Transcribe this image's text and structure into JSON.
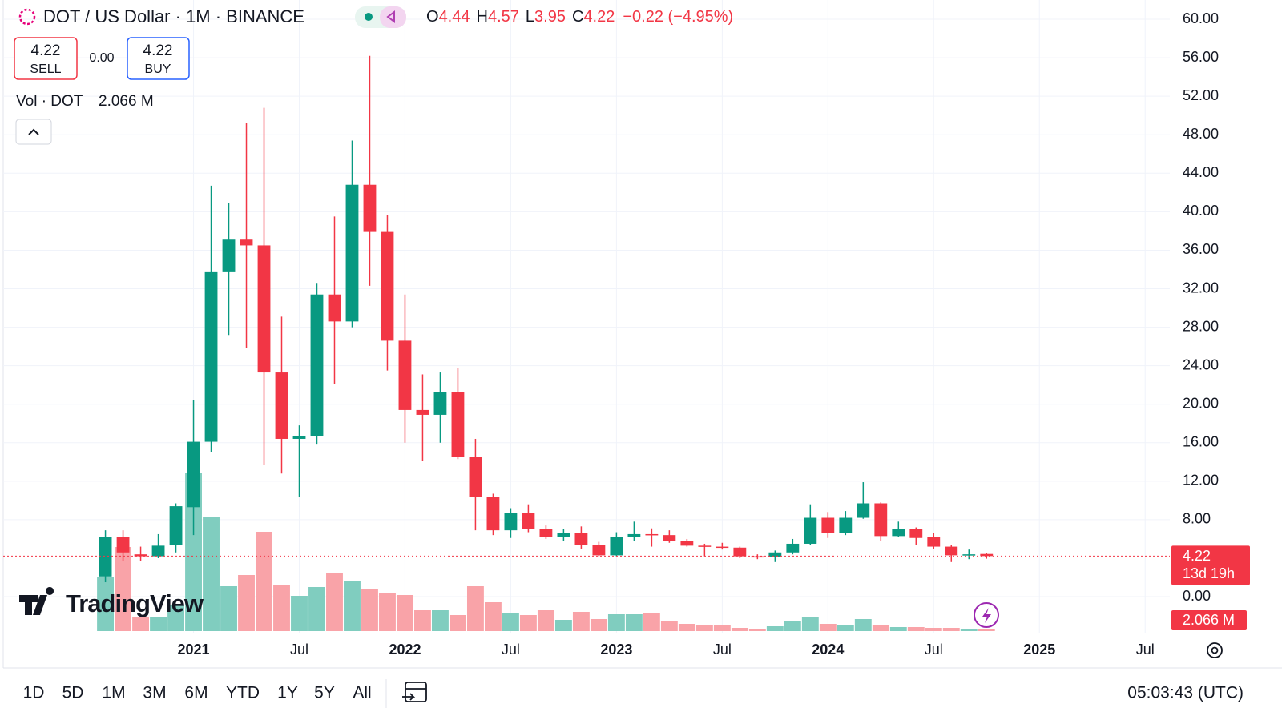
{
  "chart_data": {
    "type": "candlestick",
    "title": "DOT / US Dollar · 1M · BINANCE",
    "categories": [
      null,
      null,
      null,
      null,
      null,
      null,
      null,
      null,
      null,
      null,
      null,
      null,
      null,
      null,
      null,
      null,
      null,
      null,
      null,
      null,
      null,
      null,
      null,
      null,
      null,
      null,
      null,
      null,
      null,
      null,
      null,
      null,
      null,
      null,
      null,
      null,
      null,
      null,
      null,
      null,
      null,
      null,
      null,
      null,
      null,
      null,
      null,
      null,
      null,
      null,
      null
    ],
    "open": [
      2.1,
      6.2,
      4.4,
      4.2,
      5.4,
      9.3,
      16.1,
      33.8,
      37.1,
      36.5,
      23.3,
      16.4,
      16.7,
      31.4,
      28.6,
      42.8,
      37.9,
      26.6,
      19.4,
      18.9,
      21.3,
      14.5,
      10.4,
      6.9,
      8.7,
      7.0,
      6.2,
      6.6,
      5.4,
      4.3,
      6.2,
      6.5,
      6.4,
      5.8,
      5.3,
      5.2,
      5.1,
      4.2,
      4.1,
      4.6,
      5.5,
      8.2,
      6.6,
      8.2,
      9.7,
      6.3,
      7.0,
      6.2,
      5.2,
      4.3,
      4.44
    ],
    "high": [
      6.9,
      6.9,
      5.2,
      6.5,
      9.7,
      20.4,
      42.7,
      40.9,
      49.2,
      50.8,
      29.1,
      17.8,
      32.6,
      39.5,
      47.4,
      56.2,
      39.7,
      31.4,
      23.1,
      23.3,
      23.8,
      16.4,
      10.7,
      9.2,
      9.6,
      7.4,
      7.0,
      7.3,
      5.7,
      6.7,
      7.8,
      7.1,
      6.9,
      6.0,
      5.5,
      5.6,
      5.2,
      4.4,
      4.8,
      6.0,
      9.6,
      8.8,
      8.9,
      11.9,
      9.8,
      7.8,
      7.2,
      6.6,
      5.4,
      4.9,
      4.57
    ],
    "low": [
      1.5,
      3.7,
      3.7,
      4.0,
      4.6,
      6.4,
      15.0,
      27.2,
      25.8,
      13.7,
      12.8,
      10.4,
      15.8,
      22.1,
      28.0,
      32.3,
      23.5,
      16.0,
      14.1,
      16.0,
      14.3,
      6.9,
      6.4,
      6.1,
      6.7,
      6.0,
      5.8,
      5.0,
      4.2,
      4.2,
      5.8,
      5.2,
      5.6,
      5.2,
      4.2,
      4.9,
      4.0,
      3.9,
      3.6,
      4.4,
      5.4,
      6.1,
      6.4,
      8.1,
      5.8,
      6.2,
      5.4,
      5.0,
      3.6,
      3.9,
      3.95
    ],
    "close": [
      6.2,
      4.6,
      4.2,
      5.3,
      9.4,
      16.1,
      33.8,
      37.1,
      36.5,
      23.3,
      16.4,
      16.7,
      31.4,
      28.6,
      42.8,
      37.9,
      26.6,
      19.4,
      18.9,
      21.3,
      14.5,
      10.4,
      6.9,
      8.7,
      7.0,
      6.2,
      6.6,
      5.4,
      4.3,
      6.2,
      6.5,
      6.4,
      5.8,
      5.3,
      5.2,
      5.1,
      4.2,
      4.1,
      4.6,
      5.5,
      8.2,
      6.6,
      8.2,
      9.7,
      6.3,
      7.0,
      6.1,
      5.2,
      4.3,
      4.4,
      4.22
    ],
    "up_color": "#089981",
    "down_color": "#f23645",
    "volume": {
      "name": "Vol · DOT",
      "values": [
        68,
        105,
        18,
        18,
        33,
        198,
        143,
        56,
        70,
        124,
        58,
        44,
        55,
        72,
        62,
        52,
        47,
        45,
        26,
        26,
        20,
        56,
        36,
        22,
        20,
        26,
        14,
        24,
        15,
        21,
        21,
        22,
        12,
        9,
        8,
        7,
        4,
        3,
        6,
        12,
        17,
        9,
        8,
        15,
        7,
        5,
        5,
        4,
        4,
        3,
        2.066
      ],
      "last_label": "2.066 M",
      "ylim": [
        0,
        250
      ],
      "up_color": "#80cdbf",
      "down_color": "#f9a3a8"
    },
    "xlim": [
      -5.8,
      60.4
    ],
    "xticks": [
      {
        "value": 5,
        "label": "2021"
      },
      {
        "value": 11,
        "label": "Jul"
      },
      {
        "value": 17,
        "label": "2022"
      },
      {
        "value": 23,
        "label": "Jul"
      },
      {
        "value": 29,
        "label": "2023"
      },
      {
        "value": 35,
        "label": "Jul"
      },
      {
        "value": 41,
        "label": "2024"
      },
      {
        "value": 47,
        "label": "Jul"
      },
      {
        "value": 53,
        "label": "2025"
      },
      {
        "value": 59,
        "label": "Jul"
      }
    ],
    "ylim": [
      -3.74,
      62.0
    ],
    "yticks": [
      {
        "value": 60,
        "label": "60.00"
      },
      {
        "value": 56,
        "label": "56.00"
      },
      {
        "value": 52,
        "label": "52.00"
      },
      {
        "value": 48,
        "label": "48.00"
      },
      {
        "value": 44,
        "label": "44.00"
      },
      {
        "value": 40,
        "label": "40.00"
      },
      {
        "value": 36,
        "label": "36.00"
      },
      {
        "value": 32,
        "label": "32.00"
      },
      {
        "value": 28,
        "label": "28.00"
      },
      {
        "value": 24,
        "label": "24.00"
      },
      {
        "value": 20,
        "label": "20.00"
      },
      {
        "value": 16,
        "label": "16.00"
      },
      {
        "value": 12,
        "label": "12.00"
      },
      {
        "value": 8,
        "label": "8.00"
      },
      {
        "value": 0,
        "label": "0.00"
      }
    ],
    "grid": true,
    "change_label": "−0.22 (−4.95%)",
    "countdown": "13d 19h"
  },
  "ui": {
    "ohlc_keys": [
      "O",
      "H",
      "L",
      "C"
    ],
    "sell": {
      "price": 4.22,
      "label": "SELL"
    },
    "spread": "0.00",
    "buy": {
      "price": 4.22,
      "label": "BUY"
    },
    "logo_text": "TradingView",
    "ranges": [
      "1D",
      "5D",
      "1M",
      "3M",
      "6M",
      "YTD",
      "1Y",
      "5Y",
      "All"
    ],
    "clock": "05:03:43 (UTC)"
  }
}
